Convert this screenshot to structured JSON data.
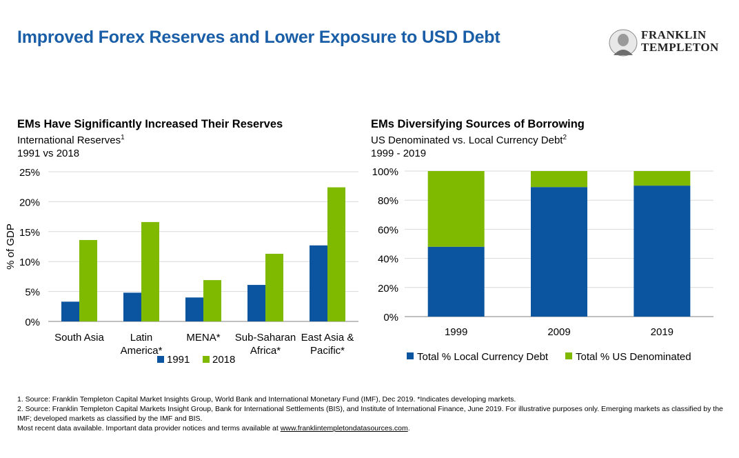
{
  "page": {
    "title": "Improved Forex Reserves and Lower Exposure to USD Debt",
    "brand_line1": "FRANKLIN",
    "brand_line2": "TEMPLETON"
  },
  "colors": {
    "title": "#1a5ea8",
    "series_dark": "#0b55a0",
    "series_green": "#7fba00",
    "grid": "#d9d9d9"
  },
  "left_chart": {
    "heading": "EMs Have Significantly Increased Their Reserves",
    "subtitle": "International Reserves",
    "subtitle_sup": "1",
    "period": "1991 vs 2018"
  },
  "right_chart": {
    "heading": "EMs Diversifying Sources of Borrowing",
    "subtitle": "US Denominated vs. Local Currency Debt",
    "subtitle_sup": "2",
    "period": "1999 - 2019"
  },
  "chart_data": [
    {
      "type": "bar",
      "categories": [
        "South Asia",
        "Latin America*",
        "MENA*",
        "Sub-Saharan Africa*",
        "East Asia & Pacific*"
      ],
      "category_lines": [
        [
          "South Asia"
        ],
        [
          "Latin",
          "America*"
        ],
        [
          "MENA*"
        ],
        [
          "Sub-Saharan",
          "Africa*"
        ],
        [
          "East Asia &",
          "Pacific*"
        ]
      ],
      "series": [
        {
          "name": "1991",
          "color": "#0b55a0",
          "values": [
            3.3,
            4.8,
            4.0,
            6.1,
            12.7
          ]
        },
        {
          "name": "2018",
          "color": "#7fba00",
          "values": [
            13.6,
            16.6,
            6.9,
            11.3,
            22.4
          ]
        }
      ],
      "ylabel": "% of GDP",
      "ylim": [
        0,
        25
      ],
      "yticks": [
        0,
        5,
        10,
        15,
        20,
        25
      ],
      "ytick_labels": [
        "0%",
        "5%",
        "10%",
        "15%",
        "20%",
        "25%"
      ],
      "grid": true,
      "legend": "bottom"
    },
    {
      "type": "bar",
      "stacked": true,
      "categories": [
        "1999",
        "2009",
        "2019"
      ],
      "series": [
        {
          "name": "Total % Local Currency Debt",
          "color": "#0b55a0",
          "values": [
            48,
            89,
            90
          ]
        },
        {
          "name": "Total % US Denominated",
          "color": "#7fba00",
          "values": [
            52,
            11,
            10
          ]
        }
      ],
      "ylim": [
        0,
        100
      ],
      "yticks": [
        0,
        20,
        40,
        60,
        80,
        100
      ],
      "ytick_labels": [
        "0%",
        "20%",
        "40%",
        "60%",
        "80%",
        "100%"
      ],
      "grid": true,
      "legend": "bottom"
    }
  ],
  "footnotes": {
    "note1": "1. Source: Franklin Templeton Capital Market Insights Group, World Bank and International Monetary Fund (IMF), Dec 2019. *Indicates developing markets.",
    "note2": "2. Source: Franklin Templeton Capital Markets Insight Group, Bank for International Settlements (BIS), and Institute of International Finance, June 2019. For illustrative purposes only. Emerging markets as classified by the IMF; developed markets as classified by the IMF and BIS.",
    "note3_prefix": "Most recent data available. Important data provider notices and terms available at ",
    "note3_link": "www.franklintempletondatasources.com",
    "note3_suffix": "."
  }
}
